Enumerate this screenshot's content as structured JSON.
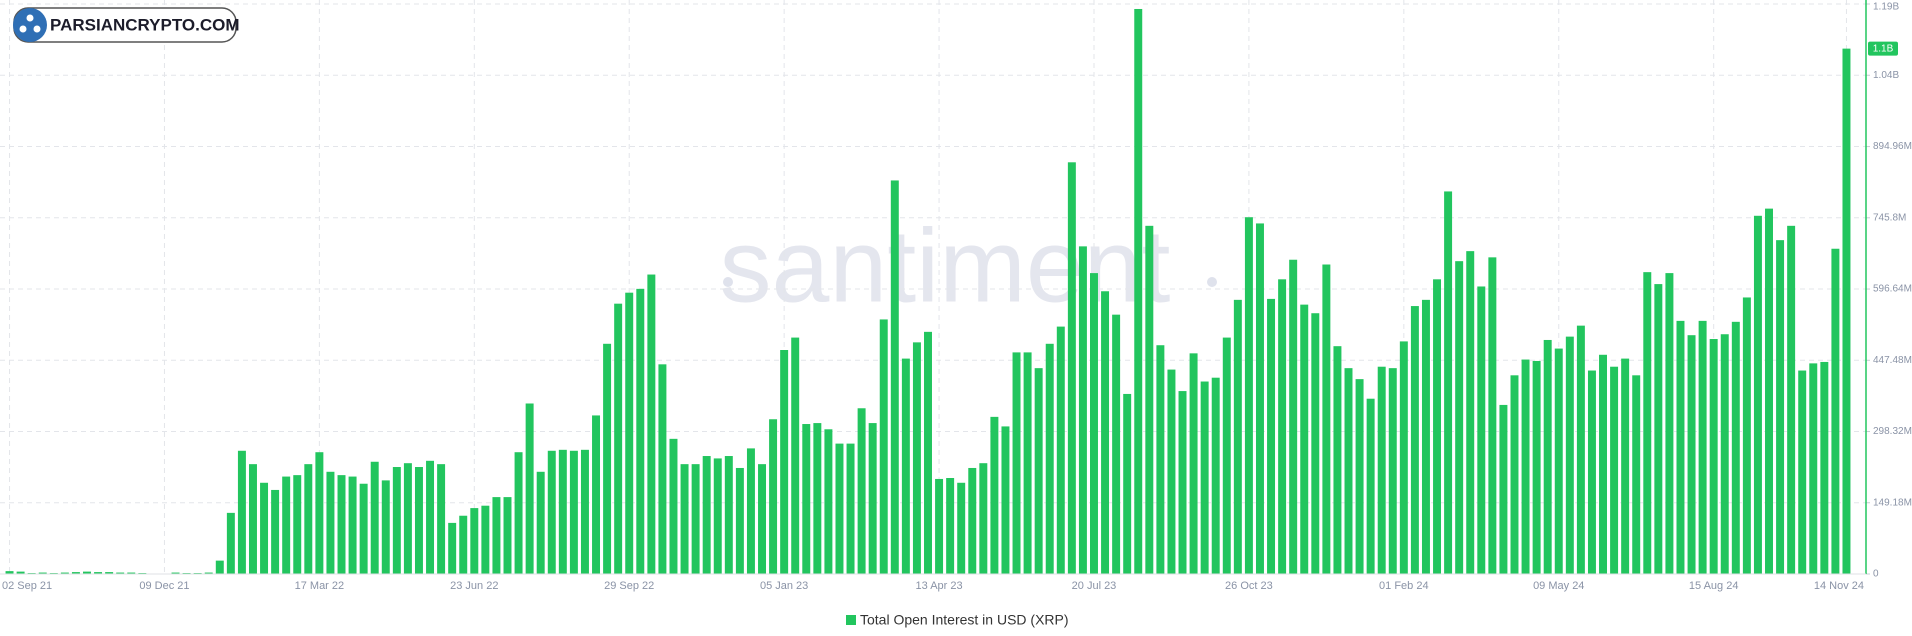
{
  "header": {
    "logo_text": "PARSIANCRYPTO.COM"
  },
  "chart_data": {
    "type": "bar",
    "watermark": "santiment",
    "categories": [
      "02 Sep 21",
      null,
      null,
      null,
      null,
      null,
      null,
      null,
      null,
      null,
      null,
      null,
      null,
      null,
      "09 Dec 21",
      null,
      null,
      null,
      null,
      null,
      null,
      null,
      null,
      null,
      null,
      null,
      null,
      null,
      "17 Mar 22",
      null,
      null,
      null,
      null,
      null,
      null,
      null,
      null,
      null,
      null,
      null,
      null,
      null,
      "23 Jun 22",
      null,
      null,
      null,
      null,
      null,
      null,
      null,
      null,
      null,
      null,
      null,
      null,
      null,
      "29 Sep 22",
      null,
      null,
      null,
      null,
      null,
      null,
      null,
      null,
      null,
      null,
      null,
      null,
      null,
      "05 Jan 23",
      null,
      null,
      null,
      null,
      null,
      null,
      null,
      null,
      null,
      null,
      null,
      null,
      null,
      "13 Apr 23",
      null,
      null,
      null,
      null,
      null,
      null,
      null,
      null,
      null,
      null,
      null,
      null,
      null,
      "20 Jul 23",
      null,
      null,
      null,
      null,
      null,
      null,
      null,
      null,
      null,
      null,
      null,
      null,
      null,
      "26 Oct 23",
      null,
      null,
      null,
      null,
      null,
      null,
      null,
      null,
      null,
      null,
      null,
      null,
      null,
      "01 Feb 24",
      null,
      null,
      null,
      null,
      null,
      null,
      null,
      null,
      null,
      null,
      null,
      null,
      null,
      "09 May 24",
      null,
      null,
      null,
      null,
      null,
      null,
      null,
      null,
      null,
      null,
      null,
      null,
      null,
      "15 Aug 24",
      null,
      null,
      null,
      null,
      null,
      null,
      null,
      null,
      null,
      null,
      null,
      "14 Nov 24"
    ],
    "series": [
      {
        "name": "Total Open Interest in USD (XRP)",
        "color": "#22c55e",
        "values": [
          6000000,
          5000000,
          2000000,
          3000000,
          2000000,
          3000000,
          4000000,
          5000000,
          4000000,
          4000000,
          3000000,
          3000000,
          2000000,
          1000000,
          1000000,
          3000000,
          2000000,
          2000000,
          3000000,
          28000000,
          128000000,
          258000000,
          230000000,
          191000000,
          176000000,
          204000000,
          207000000,
          230000000,
          255000000,
          214000000,
          207000000,
          204000000,
          189000000,
          235000000,
          196000000,
          224000000,
          232000000,
          224000000,
          237000000,
          230000000,
          107000000,
          122000000,
          138000000,
          143000000,
          161000000,
          161000000,
          255000000,
          357000000,
          214000000,
          258000000,
          260000000,
          258000000,
          260000000,
          332000000,
          482000000,
          566000000,
          589000000,
          597000000,
          627000000,
          439000000,
          283000000,
          230000000,
          230000000,
          247000000,
          242000000,
          247000000,
          222000000,
          263000000,
          230000000,
          324000000,
          469000000,
          495000000,
          314000000,
          316000000,
          303000000,
          273000000,
          273000000,
          347000000,
          316000000,
          533000000,
          824000000,
          451000000,
          485000000,
          507000000,
          199000000,
          201000000,
          191000000,
          222000000,
          232000000,
          329000000,
          309000000,
          464000000,
          464000000,
          431000000,
          482000000,
          518000000,
          862000000,
          686000000,
          630000000,
          592000000,
          543000000,
          377000000,
          1183000000,
          729000000,
          479000000,
          428000000,
          383000000,
          462000000,
          403000000,
          411000000,
          495000000,
          574000000,
          747000000,
          734000000,
          576000000,
          617000000,
          658000000,
          564000000,
          546000000,
          648000000,
          477000000,
          431000000,
          408000000,
          367000000,
          434000000,
          431000000,
          487000000,
          561000000,
          574000000,
          617000000,
          801000000,
          655000000,
          676000000,
          602000000,
          663000000,
          354000000,
          416000000,
          449000000,
          446000000,
          490000000,
          472000000,
          497000000,
          520000000,
          426000000,
          459000000,
          434000000,
          451000000,
          416000000,
          632000000,
          607000000,
          630000000,
          530000000,
          500000000,
          530000000,
          492000000,
          502000000,
          528000000,
          579000000,
          750000000,
          765000000,
          699000000,
          729000000,
          426000000,
          441000000,
          444000000,
          681000000,
          1100000000
        ]
      }
    ],
    "current_value_label": "1.1B",
    "ylim": [
      0,
      1193440000
    ],
    "yticks": [
      0,
      {
        "value": 149180000,
        "label": "149.18M"
      },
      {
        "value": 298320000,
        "label": "298.32M"
      },
      {
        "value": 447480000,
        "label": "447.48M"
      },
      {
        "value": 596640000,
        "label": "596.64M"
      },
      {
        "value": 745800000,
        "label": "745.8M"
      },
      {
        "value": 894960000,
        "label": "894.96M"
      },
      {
        "value": 1044260000,
        "label": "1.04B"
      },
      {
        "value": 1193440000,
        "label": "1.19B"
      }
    ],
    "grid": true
  }
}
